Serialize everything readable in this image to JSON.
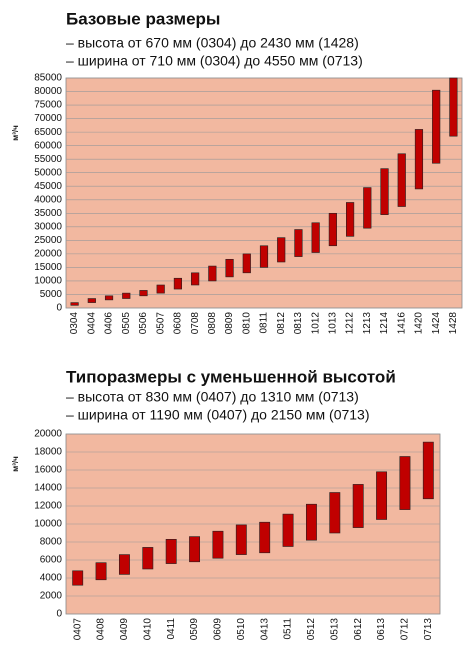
{
  "chart_data": [
    {
      "type": "floating-bar",
      "title": "Базовые размеры",
      "subtitle": [
        "– высота от 670 мм (0304) до 2430 мм (1428)",
        "– ширина от 710 мм (0304) до 4550 мм (0713)"
      ],
      "ylabel": "м³/ч",
      "categories": [
        "0304",
        "0404",
        "0406",
        "0505",
        "0506",
        "0507",
        "0608",
        "0708",
        "0808",
        "0809",
        "0810",
        "0811",
        "0812",
        "0813",
        "1012",
        "1013",
        "1212",
        "1213",
        "1214",
        "1416",
        "1420",
        "1424",
        "1428"
      ],
      "low": [
        1000,
        2000,
        3000,
        3500,
        4500,
        5500,
        7000,
        8500,
        10000,
        11500,
        13000,
        15000,
        17000,
        19000,
        20500,
        23000,
        26500,
        29500,
        34500,
        37500,
        44000,
        53500,
        63500
      ],
      "high": [
        2000,
        3500,
        4500,
        5500,
        6500,
        8500,
        11000,
        13000,
        15500,
        18000,
        20000,
        23000,
        26000,
        29000,
        31500,
        35000,
        39000,
        44500,
        51500,
        57000,
        66000,
        80500,
        85000
      ],
      "color": "#c00000",
      "background": "#f2b8a0",
      "grid": true,
      "ylim": [
        0,
        85000
      ],
      "yticks": [
        0,
        5000,
        10000,
        15000,
        20000,
        25000,
        30000,
        35000,
        40000,
        45000,
        50000,
        55000,
        60000,
        65000,
        70000,
        75000,
        80000,
        85000
      ]
    },
    {
      "type": "floating-bar",
      "title": "Типоразмеры с уменьшенной высотой",
      "subtitle": [
        "– высота от 830 мм (0407) до 1310 мм (0713)",
        "– ширина от 1190 мм (0407) до 2150 мм (0713)"
      ],
      "ylabel": "м³/ч",
      "categories": [
        "0407",
        "0408",
        "0409",
        "0410",
        "0411",
        "0509",
        "0609",
        "0510",
        "0413",
        "0511",
        "0512",
        "0513",
        "0612",
        "0613",
        "0712",
        "0713"
      ],
      "low": [
        3200,
        3800,
        4400,
        5000,
        5600,
        5800,
        6200,
        6600,
        6800,
        7500,
        8200,
        9000,
        9600,
        10500,
        11600,
        12800
      ],
      "high": [
        4800,
        5700,
        6600,
        7400,
        8300,
        8600,
        9200,
        9900,
        10200,
        11100,
        12200,
        13500,
        14400,
        15800,
        17500,
        19100
      ],
      "color": "#c00000",
      "background": "#f2b8a0",
      "grid": true,
      "ylim": [
        0,
        20000
      ],
      "yticks": [
        0,
        2000,
        4000,
        6000,
        8000,
        10000,
        12000,
        14000,
        16000,
        18000,
        20000
      ]
    }
  ]
}
